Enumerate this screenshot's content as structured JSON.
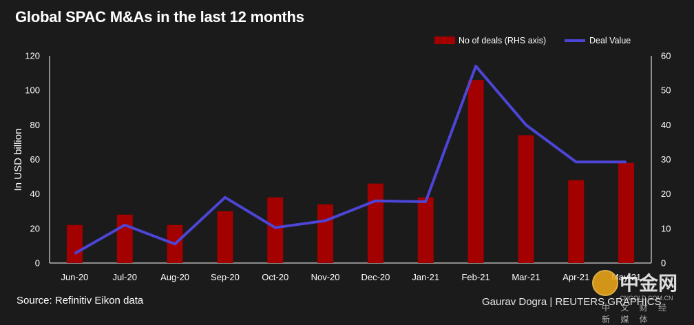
{
  "title": "Global SPAC M&As in the last 12 months",
  "source": "Source: Refinitiv Eikon data",
  "credit": "Gaurav Dogra | REUTERS GRAPHICS",
  "watermark": {
    "cn": "中金网",
    "url": "CNGOLD.COM.CN",
    "sub": "中 文 财 经 新 媒 体"
  },
  "colors": {
    "bar": "#a30000",
    "line": "#4c45d6",
    "background": "#1b1b1b",
    "axis": "#ffffff"
  },
  "chart_data": {
    "type": "bar",
    "title": "Global SPAC M&As in the last 12 months",
    "categories": [
      "Jun-20",
      "Jul-20",
      "Aug-20",
      "Sep-20",
      "Oct-20",
      "Nov-20",
      "Dec-20",
      "Jan-21",
      "Feb-21",
      "Mar-21",
      "Apr-21",
      "May-21"
    ],
    "series": [
      {
        "name": "No of deals (RHS axis)",
        "type": "bar",
        "axis": "right",
        "values": [
          11,
          14,
          11,
          15,
          19,
          17,
          23,
          19,
          53,
          37,
          24,
          29
        ]
      },
      {
        "name": "Deal Value",
        "type": "line",
        "axis": "left",
        "values": [
          5.5,
          22,
          11,
          38,
          20.5,
          24.5,
          36,
          35.5,
          114,
          80,
          58.5,
          58.5
        ]
      }
    ],
    "ylabel": "In USD billion",
    "ylim": [
      0,
      120
    ],
    "yticks": [
      0,
      20,
      40,
      60,
      80,
      100,
      120
    ],
    "y2lim": [
      0,
      60
    ],
    "y2ticks": [
      0,
      10,
      20,
      30,
      40,
      50,
      60
    ],
    "legend_position": "top-right",
    "grid": false
  }
}
